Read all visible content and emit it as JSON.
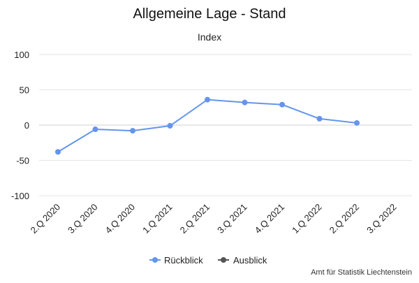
{
  "colors": {
    "series_rueckblick": "#6495ed",
    "series_ausblick": "#555555",
    "grid": "#e6e6e6",
    "text": "#222222"
  },
  "chart_data": {
    "type": "line",
    "title": "Allgemeine Lage - Stand",
    "subtitle": "Index",
    "categories": [
      "2.Q 2020",
      "3.Q 2020",
      "4.Q 2020",
      "1.Q 2021",
      "2.Q 2021",
      "3.Q 2021",
      "4.Q 2021",
      "1.Q 2022",
      "2.Q 2022",
      "3.Q 2022"
    ],
    "y_ticks": [
      100,
      50,
      0,
      -50,
      -100
    ],
    "y_tick_labels": [
      "100",
      "50",
      "0",
      "-50",
      "-100"
    ],
    "ylim": [
      -100,
      100
    ],
    "grid": true,
    "legend_position": "bottom-center",
    "series": [
      {
        "name": "Rückblick",
        "values": [
          -38,
          -6,
          -8,
          -1,
          36,
          32,
          29,
          9,
          3,
          null
        ]
      },
      {
        "name": "Ausblick",
        "values": [
          null,
          null,
          null,
          null,
          null,
          null,
          null,
          null,
          null,
          null
        ]
      }
    ],
    "credit": "Amt für Statistik Liechtenstein"
  }
}
